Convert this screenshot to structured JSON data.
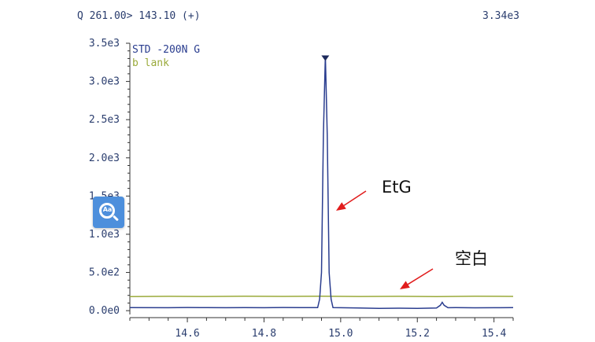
{
  "header": {
    "transition": "Q 261.00> 143.10 (+)",
    "max_intensity": "3.34e3"
  },
  "legend": [
    {
      "label": "STD -200N G",
      "color": "#2a3d8f"
    },
    {
      "label": "b lank",
      "color": "#9aaa3a"
    }
  ],
  "annotations": {
    "peak_label": "EtG",
    "blank_label": "空白",
    "arrow_color": "#e11c1c"
  },
  "floating_button": {
    "icon": "search-text-icon",
    "label": "Aa"
  },
  "chart_data": {
    "type": "line",
    "xlim": [
      14.45,
      15.45
    ],
    "ylim": [
      -50,
      3500
    ],
    "x_ticks": [
      14.6,
      14.8,
      15.0,
      15.2,
      15.4
    ],
    "x_tick_labels": [
      "14.6",
      "14.8",
      "15.0",
      "15.2",
      "15.4"
    ],
    "y_ticks": [
      0,
      500,
      1000,
      1500,
      2000,
      2500,
      3000,
      3500
    ],
    "y_tick_labels": [
      "0.0e0",
      "5.0e2",
      "1.0e3",
      "1.5e3",
      "2.0e3",
      "2.5e3",
      "3.0e3",
      "3.5e3"
    ],
    "grid": false,
    "legend_position": "top-left",
    "series": [
      {
        "name": "STD -200N G",
        "color": "#2a3d8f",
        "x": [
          14.45,
          14.55,
          14.6,
          14.65,
          14.7,
          14.75,
          14.8,
          14.85,
          14.9,
          14.94,
          14.945,
          14.95,
          14.955,
          14.96,
          14.965,
          14.97,
          14.975,
          14.98,
          15.0,
          15.05,
          15.1,
          15.15,
          15.2,
          15.25,
          15.26,
          15.265,
          15.27,
          15.28,
          15.3,
          15.35,
          15.4,
          15.45
        ],
        "y": [
          40,
          38,
          42,
          40,
          38,
          41,
          39,
          42,
          40,
          40,
          150,
          500,
          2300,
          3340,
          2300,
          500,
          150,
          40,
          38,
          35,
          30,
          32,
          30,
          35,
          70,
          110,
          70,
          38,
          40,
          37,
          39,
          40
        ]
      },
      {
        "name": "b lank",
        "color": "#9aaa3a",
        "x": [
          14.45,
          14.55,
          14.65,
          14.75,
          14.85,
          14.95,
          15.05,
          15.15,
          15.25,
          15.35,
          15.45
        ],
        "y": [
          185,
          188,
          186,
          190,
          187,
          189,
          186,
          188,
          185,
          189,
          187
        ]
      }
    ],
    "peak_marker": {
      "x": 14.96,
      "y": 3340
    }
  }
}
